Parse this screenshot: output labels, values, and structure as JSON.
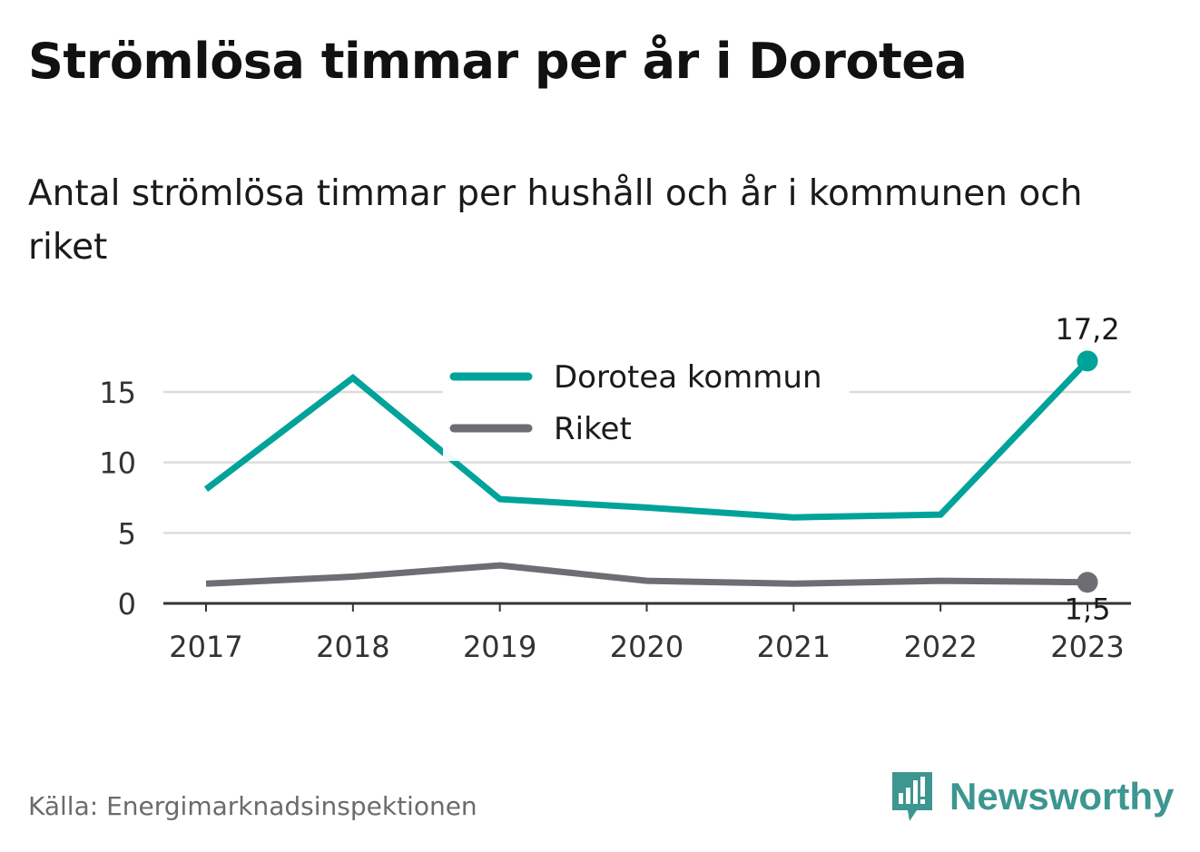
{
  "title": "Strömlösa timmar per år i Dorotea",
  "subtitle": "Antal strömlösa timmar per hushåll och år i kommunen och riket",
  "source": "Källa: Energimarknadsinspektionen",
  "logo": {
    "name": "Newsworthy",
    "icon": "newsworthy-logo-icon",
    "color": "#3d9690"
  },
  "chart_data": {
    "type": "line",
    "x": [
      "2017",
      "2018",
      "2019",
      "2020",
      "2021",
      "2022",
      "2023"
    ],
    "ylim": [
      0,
      17.2
    ],
    "yticks": [
      "0",
      "5",
      "10",
      "15"
    ],
    "grid": true,
    "legend": "top-center",
    "series": [
      {
        "name": "Dorotea kommun",
        "color": "#00a399",
        "values": [
          8.1,
          16.0,
          7.4,
          6.8,
          6.1,
          6.3,
          17.2
        ],
        "end_label": "17,2"
      },
      {
        "name": "Riket",
        "color": "#6d6d73",
        "values": [
          1.4,
          1.9,
          2.7,
          1.6,
          1.4,
          1.6,
          1.5
        ],
        "end_label": "1,5"
      }
    ]
  }
}
